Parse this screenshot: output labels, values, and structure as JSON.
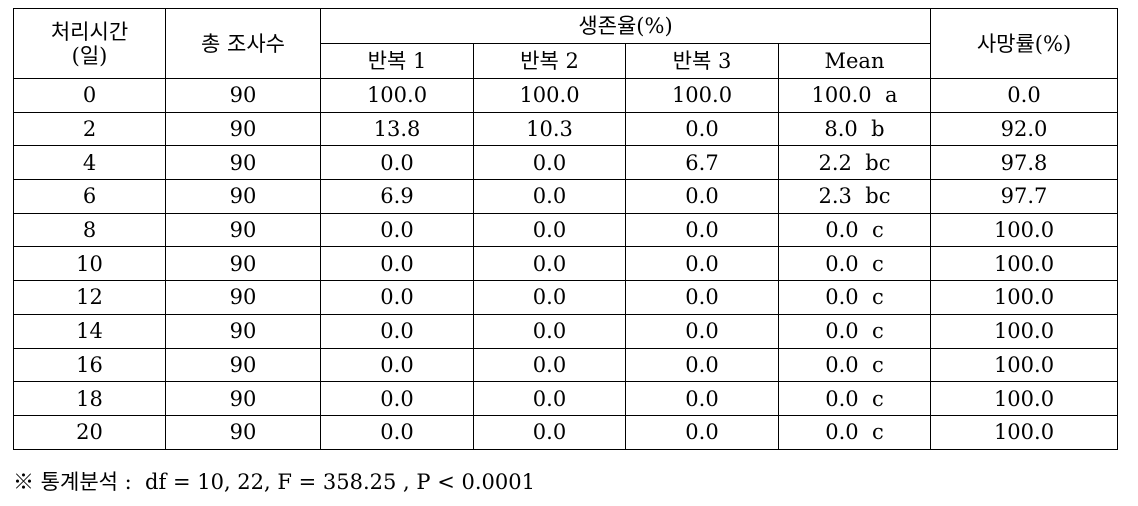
{
  "table": {
    "headers": {
      "time": [
        "처리시간",
        "(일)"
      ],
      "total": "총 조사수",
      "survival": "생존율(%)",
      "reps": [
        "반복 1",
        "반복 2",
        "반복 3",
        "Mean"
      ],
      "mortality": "사망률(%)"
    },
    "rows": [
      [
        "0",
        "90",
        "100.0",
        "100.0",
        "100.0",
        "100.0  a",
        "0.0"
      ],
      [
        "2",
        "90",
        "13.8",
        "10.3",
        "0.0",
        "8.0  b",
        "92.0"
      ],
      [
        "4",
        "90",
        "0.0",
        "0.0",
        "6.7",
        "2.2  bc",
        "97.8"
      ],
      [
        "6",
        "90",
        "6.9",
        "0.0",
        "0.0",
        "2.3  bc",
        "97.7"
      ],
      [
        "8",
        "90",
        "0.0",
        "0.0",
        "0.0",
        "0.0  c",
        "100.0"
      ],
      [
        "10",
        "90",
        "0.0",
        "0.0",
        "0.0",
        "0.0  c",
        "100.0"
      ],
      [
        "12",
        "90",
        "0.0",
        "0.0",
        "0.0",
        "0.0  c",
        "100.0"
      ],
      [
        "14",
        "90",
        "0.0",
        "0.0",
        "0.0",
        "0.0  c",
        "100.0"
      ],
      [
        "16",
        "90",
        "0.0",
        "0.0",
        "0.0",
        "0.0  c",
        "100.0"
      ],
      [
        "18",
        "90",
        "0.0",
        "0.0",
        "0.0",
        "0.0  c",
        "100.0"
      ],
      [
        "20",
        "90",
        "0.0",
        "0.0",
        "0.0",
        "0.0  c",
        "100.0"
      ]
    ]
  },
  "footnote": "※ 통계분석 :  df = 10, 22, F = 358.25 , P < 0.0001"
}
